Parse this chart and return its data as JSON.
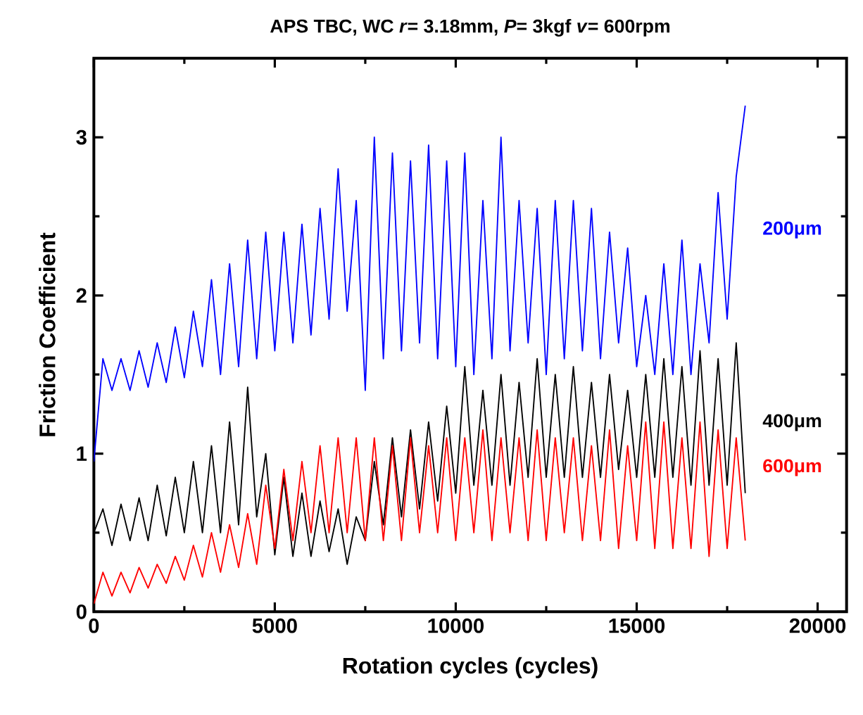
{
  "chart_data": {
    "type": "line",
    "title": "APS TBC, WC *r*= 3.18mm, *P*= 3kgf *v*= 600rpm",
    "xlabel": "Rotation cycles (cycles)",
    "ylabel": "Friction Coefficient",
    "x": [
      0,
      250,
      500,
      750,
      1000,
      1250,
      1500,
      1750,
      2000,
      2250,
      2500,
      2750,
      3000,
      3250,
      3500,
      3750,
      4000,
      4250,
      4500,
      4750,
      5000,
      5250,
      5500,
      5750,
      6000,
      6250,
      6500,
      6750,
      7000,
      7250,
      7500,
      7750,
      8000,
      8250,
      8500,
      8750,
      9000,
      9250,
      9500,
      9750,
      10000,
      10250,
      10500,
      10750,
      11000,
      11250,
      11500,
      11750,
      12000,
      12250,
      12500,
      12750,
      13000,
      13250,
      13500,
      13750,
      14000,
      14250,
      14500,
      14750,
      15000,
      15250,
      15500,
      15750,
      16000,
      16250,
      16500,
      16750,
      17000,
      17250,
      17500,
      17750,
      18000
    ],
    "series": [
      {
        "name": "200μm",
        "color": "#0000ff",
        "values": [
          0.95,
          1.6,
          1.4,
          1.6,
          1.4,
          1.65,
          1.42,
          1.7,
          1.45,
          1.8,
          1.48,
          1.9,
          1.55,
          2.1,
          1.5,
          2.2,
          1.55,
          2.35,
          1.6,
          2.4,
          1.65,
          2.4,
          1.7,
          2.45,
          1.75,
          2.55,
          1.85,
          2.8,
          1.9,
          2.6,
          1.4,
          3.0,
          1.6,
          2.9,
          1.65,
          2.85,
          1.7,
          2.95,
          1.6,
          2.85,
          1.55,
          2.9,
          1.5,
          2.6,
          1.6,
          3.0,
          1.65,
          2.6,
          1.7,
          2.55,
          1.5,
          2.6,
          1.6,
          2.6,
          1.65,
          2.55,
          1.6,
          2.4,
          1.7,
          2.3,
          1.55,
          2.0,
          1.5,
          2.2,
          1.5,
          2.35,
          1.5,
          2.2,
          1.7,
          2.65,
          1.85,
          2.75,
          3.2
        ]
      },
      {
        "name": "400μm",
        "color": "#000000",
        "values": [
          0.5,
          0.65,
          0.42,
          0.68,
          0.45,
          0.72,
          0.45,
          0.8,
          0.48,
          0.85,
          0.5,
          0.95,
          0.5,
          1.05,
          0.5,
          1.2,
          0.55,
          1.42,
          0.6,
          1.0,
          0.36,
          0.85,
          0.35,
          0.75,
          0.35,
          0.7,
          0.38,
          0.65,
          0.3,
          0.6,
          0.45,
          0.95,
          0.55,
          1.1,
          0.6,
          1.15,
          0.65,
          1.2,
          0.7,
          1.3,
          0.75,
          1.55,
          0.8,
          1.4,
          0.8,
          1.5,
          0.8,
          1.45,
          0.85,
          1.6,
          0.85,
          1.5,
          0.85,
          1.55,
          0.85,
          1.45,
          0.85,
          1.5,
          0.9,
          1.4,
          0.85,
          1.5,
          0.85,
          1.6,
          0.85,
          1.55,
          0.8,
          1.65,
          0.8,
          1.6,
          0.8,
          1.7,
          0.75
        ]
      },
      {
        "name": "600μm",
        "color": "#ff0000",
        "values": [
          0.05,
          0.25,
          0.1,
          0.25,
          0.12,
          0.28,
          0.15,
          0.3,
          0.18,
          0.35,
          0.2,
          0.42,
          0.22,
          0.5,
          0.25,
          0.55,
          0.28,
          0.62,
          0.3,
          0.8,
          0.4,
          0.9,
          0.45,
          0.95,
          0.5,
          1.05,
          0.5,
          1.1,
          0.5,
          1.1,
          0.45,
          1.1,
          0.45,
          1.05,
          0.45,
          1.1,
          0.5,
          1.05,
          0.5,
          1.1,
          0.45,
          1.1,
          0.5,
          1.15,
          0.45,
          1.1,
          0.5,
          1.1,
          0.45,
          1.15,
          0.45,
          1.1,
          0.5,
          1.1,
          0.45,
          1.05,
          0.45,
          1.15,
          0.4,
          1.05,
          0.45,
          1.2,
          0.4,
          1.2,
          0.4,
          1.1,
          0.4,
          1.2,
          0.35,
          1.15,
          0.4,
          1.1,
          0.45
        ]
      }
    ],
    "xlim": [
      0,
      20800
    ],
    "ylim": [
      0,
      3.5
    ],
    "xticks": [
      0,
      5000,
      10000,
      15000,
      20000
    ],
    "yticks": [
      0,
      1,
      2,
      3
    ],
    "grid": false,
    "legend": false,
    "marker": "none",
    "line_style": "solid"
  }
}
